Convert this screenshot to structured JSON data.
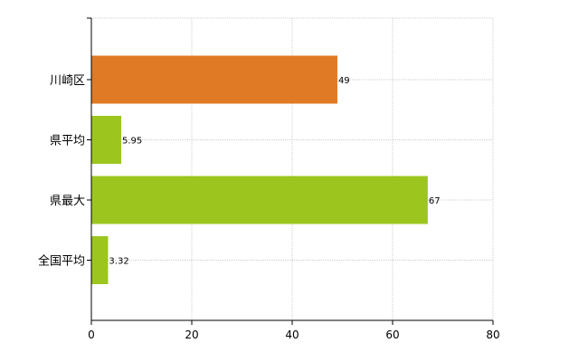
{
  "chart_data": {
    "type": "bar",
    "orientation": "horizontal",
    "categories": [
      "川崎区",
      "県平均",
      "県最大",
      "全国平均"
    ],
    "values": [
      49,
      5.95,
      67,
      3.32
    ],
    "data_labels": [
      "49",
      "5.95",
      "67",
      "3.32"
    ],
    "bar_colors": [
      "#e07a24",
      "#9cc61e",
      "#9cc61e",
      "#9cc61e"
    ],
    "x_ticks": [
      "0",
      "20",
      "40",
      "60",
      "80"
    ],
    "xlim": [
      0,
      80
    ],
    "grid": true,
    "legend": "none"
  }
}
